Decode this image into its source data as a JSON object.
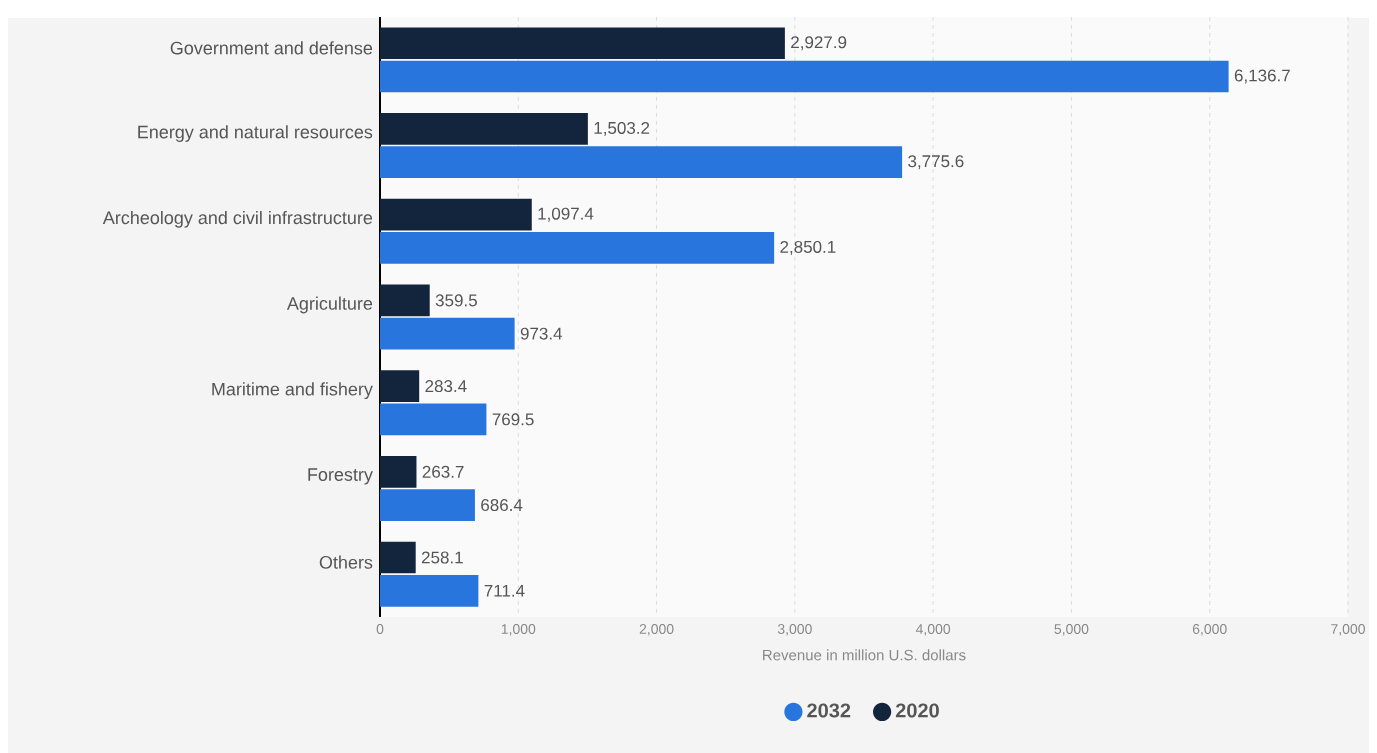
{
  "chart_data": {
    "type": "bar",
    "orientation": "horizontal",
    "xlabel": "Revenue in million U.S. dollars",
    "categories": [
      "Government and defense",
      "Energy and natural resources",
      "Archeology and civil infrastructure",
      "Agriculture",
      "Maritime and fishery",
      "Forestry",
      "Others"
    ],
    "series": [
      {
        "name": "2032",
        "color": "#2876dd",
        "values": [
          6136.7,
          3775.6,
          2850.1,
          973.4,
          769.5,
          686.4,
          711.4
        ],
        "value_labels": [
          "6,136.7",
          "3,775.6",
          "2,850.1",
          "973.4",
          "769.5",
          "686.4",
          "711.4"
        ]
      },
      {
        "name": "2020",
        "color": "#13253d",
        "values": [
          2927.9,
          1503.2,
          1097.4,
          359.5,
          283.4,
          263.7,
          258.1
        ],
        "value_labels": [
          "2,927.9",
          "1,503.2",
          "1,097.4",
          "359.5",
          "283.4",
          "263.7",
          "258.1"
        ]
      }
    ],
    "xlim": [
      0,
      7000
    ],
    "xticks": [
      0,
      {
        "value": 1000,
        "label": "1,000"
      },
      {
        "value": 2000,
        "label": "2,000"
      },
      {
        "value": 3000,
        "label": "3,000"
      },
      {
        "value": 4000,
        "label": "4,000"
      },
      {
        "value": 5000,
        "label": "5,000"
      },
      {
        "value": 6000,
        "label": "6,000"
      },
      {
        "value": 7000,
        "label": "7,000"
      }
    ],
    "grid": "x",
    "legend": "bottom"
  }
}
